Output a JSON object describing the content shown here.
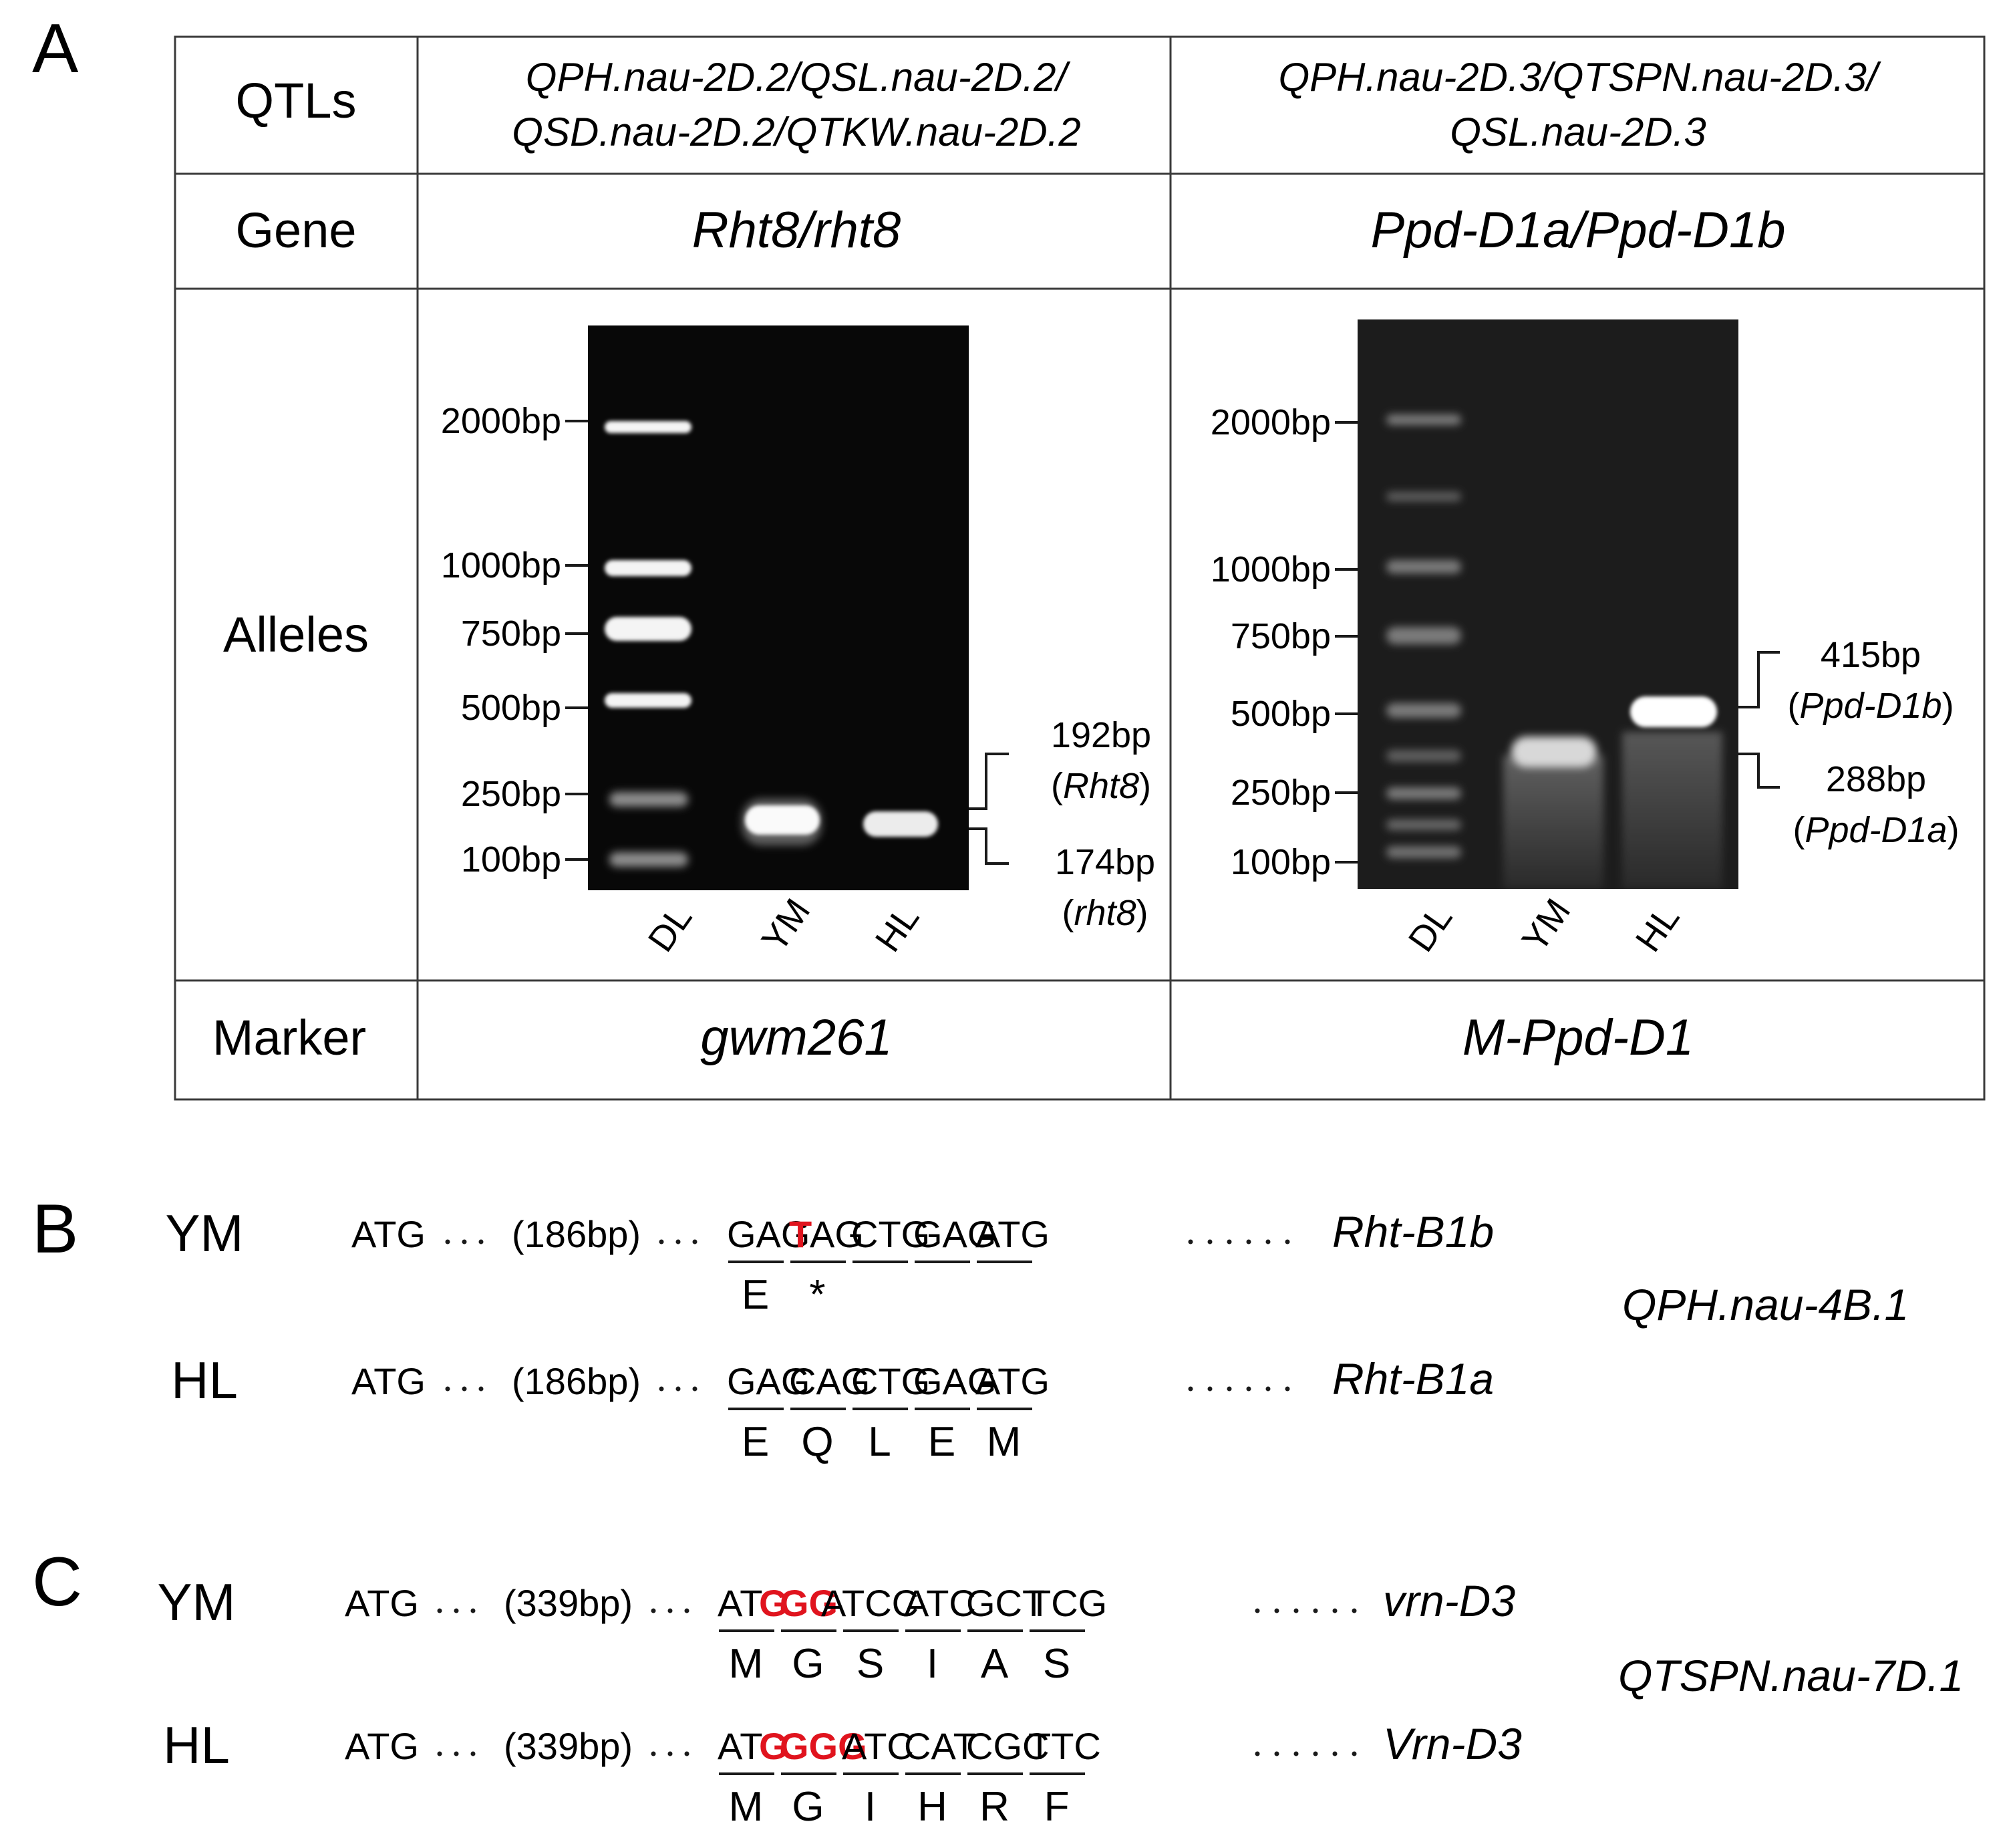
{
  "panel_a": {
    "label": "A",
    "rows": {
      "qtls": "QTLs",
      "gene": "Gene",
      "alleles": "Alleles",
      "marker": "Marker"
    },
    "col1": {
      "qtls_line1": "QPH.nau-2D.2/QSL.nau-2D.2/",
      "qtls_line2": "QSD.nau-2D.2/QTKW.nau-2D.2",
      "gene": "Rht8/rht8",
      "marker": "gwm261",
      "ladder": [
        {
          "label": "2000bp",
          "bp": 2000
        },
        {
          "label": "1000bp",
          "bp": 1000
        },
        {
          "label": "750bp",
          "bp": 750
        },
        {
          "label": "500bp",
          "bp": 500
        },
        {
          "label": "250bp",
          "bp": 250
        },
        {
          "label": "100bp",
          "bp": 100
        }
      ],
      "lanes": [
        "DL",
        "YM",
        "HL"
      ],
      "band_upper_size": "192bp",
      "band_upper_name": "Rht8",
      "band_lower_size": "174bp",
      "band_lower_name": "rht8"
    },
    "col2": {
      "qtls_line1": "QPH.nau-2D.3/QTSPN.nau-2D.3/",
      "qtls_line2": "QSL.nau-2D.3",
      "gene": "Ppd-D1a/Ppd-D1b",
      "marker": "M-Ppd-D1",
      "ladder": [
        {
          "label": "2000bp",
          "bp": 2000
        },
        {
          "label": "1000bp",
          "bp": 1000
        },
        {
          "label": "750bp",
          "bp": 750
        },
        {
          "label": "500bp",
          "bp": 500
        },
        {
          "label": "250bp",
          "bp": 250
        },
        {
          "label": "100bp",
          "bp": 100
        }
      ],
      "lanes": [
        "DL",
        "YM",
        "HL"
      ],
      "band_upper_size": "415bp",
      "band_upper_name": "Ppd-D1b",
      "band_lower_size": "288bp",
      "band_lower_name": "Ppd-D1a"
    }
  },
  "panel_b": {
    "label": "B",
    "qtl": "QPH.nau-4B.1",
    "rows": [
      {
        "line": "YM",
        "start": "ATG",
        "gap": "(186bp)",
        "codons": [
          {
            "parts": [
              {
                "t": "GAG",
                "mut": false
              }
            ],
            "aa": "E"
          },
          {
            "parts": [
              {
                "t": "T",
                "mut": true
              },
              {
                "t": "AG",
                "mut": false
              }
            ],
            "aa": "*"
          },
          {
            "parts": [
              {
                "t": "CTG",
                "mut": false
              }
            ],
            "aa": ""
          },
          {
            "parts": [
              {
                "t": "GAG",
                "mut": false
              }
            ],
            "aa": ""
          },
          {
            "parts": [
              {
                "t": "ATG",
                "mut": false
              }
            ],
            "aa": ""
          }
        ],
        "allele": "Rht-B1b"
      },
      {
        "line": "HL",
        "start": "ATG",
        "gap": "(186bp)",
        "codons": [
          {
            "parts": [
              {
                "t": "GAG",
                "mut": false
              }
            ],
            "aa": "E"
          },
          {
            "parts": [
              {
                "t": "CAG",
                "mut": false
              }
            ],
            "aa": "Q"
          },
          {
            "parts": [
              {
                "t": "CTG",
                "mut": false
              }
            ],
            "aa": "L"
          },
          {
            "parts": [
              {
                "t": "GAG",
                "mut": false
              }
            ],
            "aa": "E"
          },
          {
            "parts": [
              {
                "t": "ATG",
                "mut": false
              }
            ],
            "aa": "M"
          }
        ],
        "allele": "Rht-B1a"
      }
    ]
  },
  "panel_c": {
    "label": "C",
    "qtl": "QTSPN.nau-7D.1",
    "rows": [
      {
        "line": "YM",
        "start": "ATG",
        "gap": "(339bp)",
        "codons": [
          {
            "parts": [
              {
                "t": "AT",
                "mut": false
              },
              {
                "t": "G",
                "mut": true
              }
            ],
            "aa": "M"
          },
          {
            "parts": [
              {
                "t": "GG",
                "mut": true
              },
              {
                "t": "A",
                "mut": false
              }
            ],
            "aa": "G"
          },
          {
            "parts": [
              {
                "t": "TCC",
                "mut": false
              }
            ],
            "aa": "S"
          },
          {
            "parts": [
              {
                "t": "ATC",
                "mut": false
              }
            ],
            "aa": "I"
          },
          {
            "parts": [
              {
                "t": "GCT",
                "mut": false
              }
            ],
            "aa": "A"
          },
          {
            "parts": [
              {
                "t": "TCG",
                "mut": false
              }
            ],
            "aa": "S"
          }
        ],
        "allele": "vrn-D3"
      },
      {
        "line": "HL",
        "start": "ATG",
        "gap": "(339bp)",
        "codons": [
          {
            "parts": [
              {
                "t": "AT",
                "mut": false
              },
              {
                "t": "G",
                "mut": true
              }
            ],
            "aa": "M"
          },
          {
            "parts": [
              {
                "t": "GGG",
                "mut": true
              }
            ],
            "aa": "G"
          },
          {
            "parts": [
              {
                "t": "ATC",
                "mut": false
              }
            ],
            "aa": "I"
          },
          {
            "parts": [
              {
                "t": "CAT",
                "mut": false
              }
            ],
            "aa": "H"
          },
          {
            "parts": [
              {
                "t": "CGC",
                "mut": false
              }
            ],
            "aa": "R"
          },
          {
            "parts": [
              {
                "t": "TTC",
                "mut": false
              }
            ],
            "aa": "F"
          }
        ],
        "allele": "Vrn-D3"
      }
    ]
  }
}
